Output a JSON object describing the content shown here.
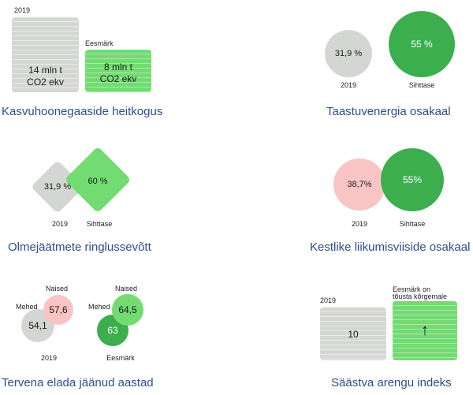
{
  "panels": {
    "emissions": {
      "label_2019": "2019",
      "box_2019_line1": "14 mln t",
      "box_2019_line2": "CO2 ekv",
      "label_goal": "Eesmärk",
      "box_goal_line1": "8 mln t",
      "box_goal_line2": "CO2 ekv",
      "title": "Kasvuhoonegaaside heitkogus"
    },
    "renewable": {
      "value_2019": "31,9 %",
      "value_target": "55 %",
      "label_2019": "2019",
      "label_target": "Sihttase",
      "title": "Taastuvenergia osakaal"
    },
    "waste": {
      "value_2019": "31,9 %",
      "value_target": "60 %",
      "label_2019": "2019",
      "label_target": "Sihttase",
      "title": "Olmejäätmete ringlussevõtt"
    },
    "mobility": {
      "value_2019": "38,7%",
      "value_target": "55%",
      "label_2019": "2019",
      "label_target": "Sihttase",
      "title": "Kestlike liikumisviiside osakaal"
    },
    "healthy_years": {
      "label_women_left": "Naised",
      "label_men_left": "Mehed",
      "women_2019": "57,6",
      "men_2019": "54,1",
      "label_2019": "2019",
      "label_women_right": "Naised",
      "label_men_right": "Mehed",
      "women_goal": "64,5",
      "men_goal": "63",
      "label_goal": "Eesmärk",
      "title": "Tervena elada jäänud aastad"
    },
    "development_index": {
      "label_2019": "2019",
      "value_2019": "10",
      "goal_line1": "Eesmärk on",
      "goal_line2": "tõusta kõrgemale",
      "goal_arrow": "↑",
      "title": "Säästva arengu indeks"
    }
  },
  "colors": {
    "grey": "#d4d6d4",
    "green": "#3cae4e",
    "light_green": "#72dc72",
    "pink": "#f9c4c4",
    "title_blue": "#2d4e8a"
  }
}
